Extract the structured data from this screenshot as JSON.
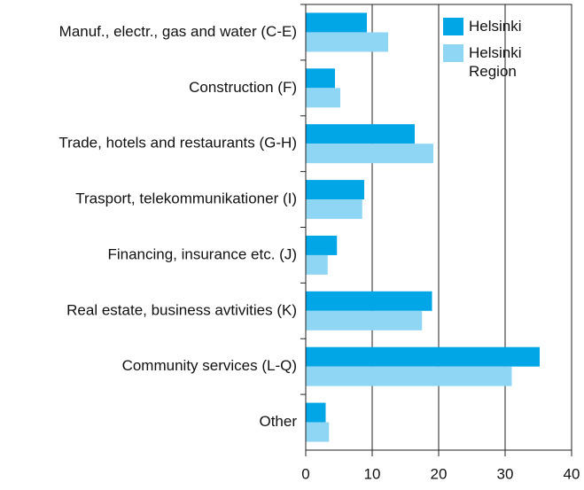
{
  "chart_data": {
    "type": "barh",
    "categories": [
      "Manuf., electr., gas and water (C-E)",
      "Construction (F)",
      "Trade, hotels and restaurants (G-H)",
      "Trasport, telekommunikationer (I)",
      "Financing, insurance etc. (J)",
      "Real estate, business avtivities (K)",
      "Community services (L-Q)",
      "Other"
    ],
    "series": [
      {
        "name": "Helsinki",
        "color": "#00a6e6",
        "values": [
          9.2,
          4.4,
          16.4,
          8.8,
          4.7,
          19,
          35.2,
          3
        ]
      },
      {
        "name": "Helsinki Region",
        "color": "#8fd6f5",
        "values": [
          12.4,
          5.2,
          19.2,
          8.5,
          3.3,
          17.5,
          31,
          3.5
        ]
      }
    ],
    "xlim": [
      0,
      40
    ],
    "xticks": [
      0,
      10,
      20,
      30,
      40
    ],
    "grid": true,
    "legend": "upper right"
  }
}
